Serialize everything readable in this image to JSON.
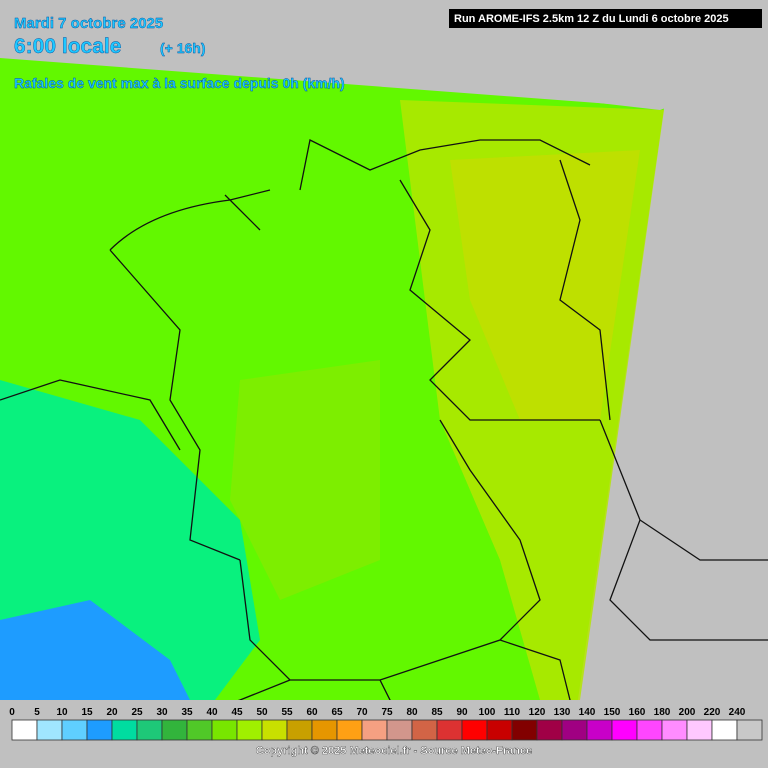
{
  "header": {
    "date": "Mardi 7 octobre 2025",
    "time": "6:00 locale",
    "lead": "(+ 16h)",
    "parameter": "Rafales de vent max à la surface depuis 0h (km/h)",
    "run": "Run AROME-IFS 2.5km 12 Z du Lundi 6 octobre 2025"
  },
  "legend": {
    "items": [
      {
        "value": 0,
        "color": "#ffffff"
      },
      {
        "value": 5,
        "color": "#a0e6ff"
      },
      {
        "value": 10,
        "color": "#5fcfff"
      },
      {
        "value": 15,
        "color": "#1e9cff"
      },
      {
        "value": 20,
        "color": "#00dca0"
      },
      {
        "value": 25,
        "color": "#1ec878"
      },
      {
        "value": 30,
        "color": "#32b43c"
      },
      {
        "value": 35,
        "color": "#50c828"
      },
      {
        "value": 40,
        "color": "#78e600"
      },
      {
        "value": 45,
        "color": "#a0f000"
      },
      {
        "value": 50,
        "color": "#c8e000"
      },
      {
        "value": 55,
        "color": "#c8a000"
      },
      {
        "value": 60,
        "color": "#e69600"
      },
      {
        "value": 65,
        "color": "#ffa014"
      },
      {
        "value": 70,
        "color": "#f5a082"
      },
      {
        "value": 75,
        "color": "#d2968c"
      },
      {
        "value": 80,
        "color": "#d26446"
      },
      {
        "value": 85,
        "color": "#dc3232"
      },
      {
        "value": 90,
        "color": "#ff0000"
      },
      {
        "value": 100,
        "color": "#c80000"
      },
      {
        "value": 110,
        "color": "#820000"
      },
      {
        "value": 120,
        "color": "#a00046"
      },
      {
        "value": 130,
        "color": "#a00082"
      },
      {
        "value": 140,
        "color": "#c800c8"
      },
      {
        "value": 150,
        "color": "#ff00ff"
      },
      {
        "value": 160,
        "color": "#ff46ff"
      },
      {
        "value": 180,
        "color": "#ff8cff"
      },
      {
        "value": 200,
        "color": "#ffc8ff"
      },
      {
        "value": 220,
        "color": "#ffffff"
      },
      {
        "value": 240,
        "color": "#c8c8c8"
      }
    ]
  },
  "footer": {
    "copyright": "Copyright © 2025 Meteociel.fr - Source Meteo-France"
  }
}
